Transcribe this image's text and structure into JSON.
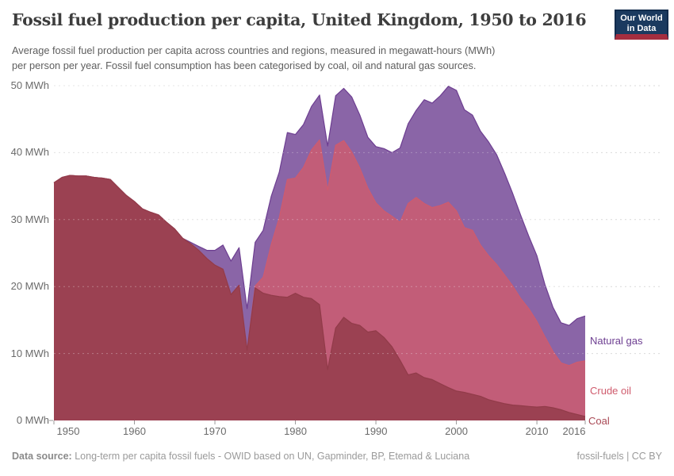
{
  "header": {
    "title": "Fossil fuel production per capita, United Kingdom, 1950 to 2016",
    "subtitle_lines": [
      "Average fossil fuel production per capita across countries and regions, measured in megawatt-hours (MWh)",
      "per person per year. Fossil fuel consumption has been categorised by coal, oil and natural gas sources."
    ],
    "logo": {
      "line1": "Our World",
      "line2": "in Data",
      "bg_color": "#1b3a5f",
      "stripe_color": "#a52e3f"
    }
  },
  "chart_data": {
    "type": "area",
    "stacked": true,
    "title": "Fossil fuel production per capita, United Kingdom, 1950 to 2016",
    "unit": "MWh",
    "xlim": [
      1950,
      2016
    ],
    "ylim": [
      0,
      50
    ],
    "grid": true,
    "legend_position": "right-edge-labels",
    "yticks": [
      0,
      10,
      20,
      30,
      40,
      50
    ],
    "ytick_suffix": " MWh",
    "xticks": [
      1950,
      1960,
      1970,
      1980,
      1990,
      2000,
      2010,
      2016
    ],
    "x": [
      1950,
      1951,
      1952,
      1953,
      1954,
      1955,
      1956,
      1957,
      1958,
      1959,
      1960,
      1961,
      1962,
      1963,
      1964,
      1965,
      1966,
      1967,
      1968,
      1969,
      1970,
      1971,
      1972,
      1973,
      1974,
      1975,
      1976,
      1977,
      1978,
      1979,
      1980,
      1981,
      1982,
      1983,
      1984,
      1985,
      1986,
      1987,
      1988,
      1989,
      1990,
      1991,
      1992,
      1993,
      1994,
      1995,
      1996,
      1997,
      1998,
      1999,
      2000,
      2001,
      2002,
      2003,
      2004,
      2005,
      2006,
      2007,
      2008,
      2009,
      2010,
      2011,
      2012,
      2013,
      2014,
      2015,
      2016
    ],
    "series": [
      {
        "name": "Coal",
        "color": "#913b49",
        "label_color": "#a94955",
        "values": [
          35.5,
          36.3,
          36.6,
          36.5,
          36.5,
          36.3,
          36.2,
          36.0,
          34.8,
          33.6,
          32.7,
          31.6,
          31.1,
          30.7,
          29.6,
          28.6,
          27.2,
          26.4,
          25.4,
          24.2,
          23.2,
          22.6,
          18.8,
          20.2,
          10.5,
          19.8,
          19.0,
          18.7,
          18.5,
          18.4,
          19.0,
          18.4,
          18.2,
          17.3,
          7.6,
          13.8,
          15.4,
          14.5,
          14.2,
          13.2,
          13.4,
          12.4,
          11.0,
          9.0,
          6.8,
          7.1,
          6.4,
          6.1,
          5.5,
          4.9,
          4.4,
          4.2,
          3.9,
          3.6,
          3.1,
          2.8,
          2.5,
          2.3,
          2.2,
          2.1,
          2.0,
          2.1,
          1.9,
          1.6,
          1.2,
          0.9,
          0.6
        ]
      },
      {
        "name": "Crude oil",
        "color": "#cf5b6d",
        "label_color": "#cf5b6d",
        "values": [
          0,
          0,
          0,
          0,
          0,
          0,
          0,
          0,
          0,
          0,
          0,
          0,
          0,
          0,
          0,
          0,
          0,
          0,
          0,
          0,
          0,
          0,
          0,
          0,
          0,
          0.3,
          2.4,
          7.6,
          11.8,
          17.6,
          17.2,
          19.4,
          22.2,
          24.6,
          26.8,
          27.3,
          26.4,
          25.6,
          23.5,
          21.5,
          19.1,
          18.9,
          19.5,
          20.6,
          25.6,
          26.2,
          26.0,
          25.7,
          26.6,
          27.7,
          26.9,
          24.6,
          24.5,
          22.6,
          21.5,
          20.5,
          19.2,
          17.8,
          16.0,
          14.6,
          12.8,
          10.4,
          8.4,
          7.0,
          7.0,
          7.8,
          8.3
        ]
      },
      {
        "name": "Natural gas",
        "color": "#6d3e91",
        "label_color": "#6d3e91",
        "values": [
          0,
          0,
          0,
          0,
          0,
          0,
          0,
          0,
          0,
          0,
          0,
          0,
          0,
          0,
          0,
          0,
          0,
          0.2,
          0.6,
          1.2,
          2.2,
          3.6,
          5.0,
          5.6,
          6.2,
          6.5,
          7.0,
          7.2,
          6.8,
          7.0,
          6.5,
          6.4,
          6.5,
          6.7,
          6.6,
          7.4,
          7.8,
          8.2,
          7.9,
          7.6,
          8.4,
          9.3,
          9.5,
          11.1,
          11.9,
          13.0,
          15.5,
          15.6,
          16.4,
          17.3,
          18.0,
          17.6,
          17.2,
          17.0,
          17.0,
          16.4,
          15.2,
          13.8,
          12.4,
          10.8,
          9.8,
          7.8,
          6.6,
          6.0,
          6.0,
          6.5,
          6.7
        ]
      }
    ],
    "style": {
      "grid_color": "#d9d9d9",
      "tick_color": "#999999",
      "fill_opacity": 0.8
    }
  },
  "footer": {
    "source_label": "Data source:",
    "source_text": "Long-term per capita fossil fuels - OWID based on UN, Gapminder, BP, Etemad & Luciana",
    "note_right": "fossil-fuels | CC BY"
  }
}
